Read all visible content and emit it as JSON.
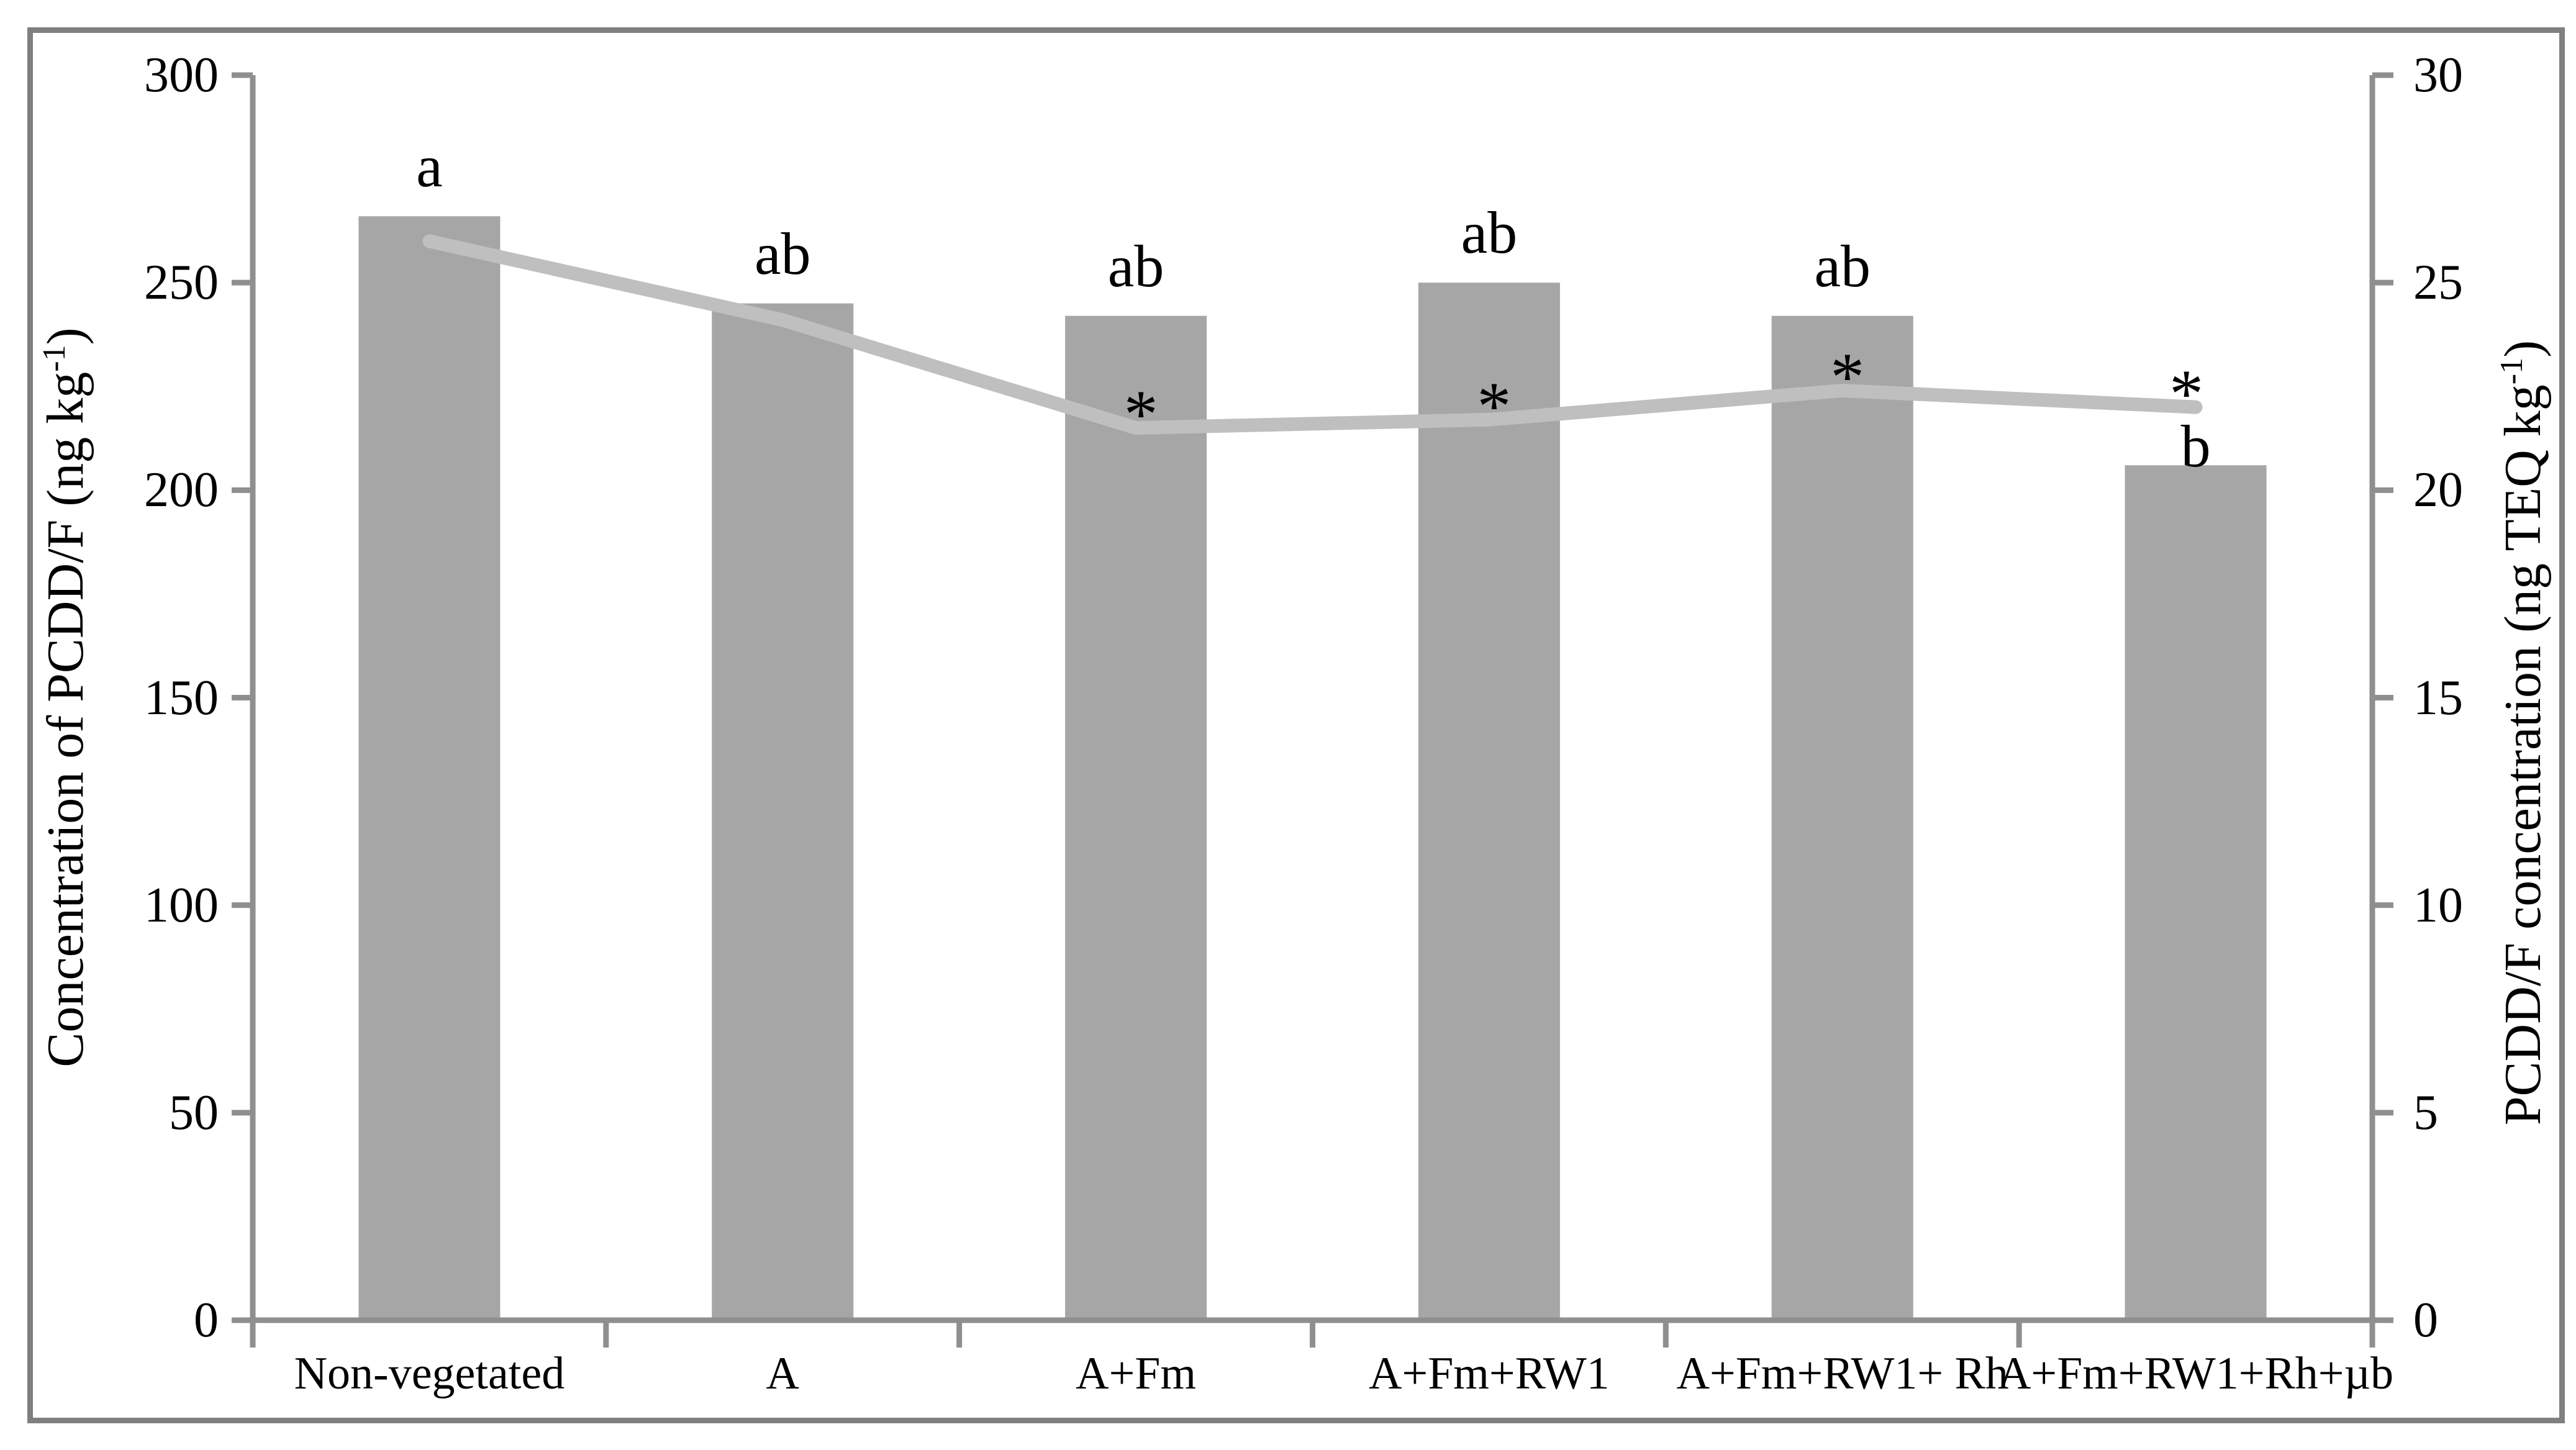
{
  "figure": {
    "kind": "dual-axis bar and line chart",
    "background": "#ffffff",
    "colors": {
      "bar": "#a6a6a6",
      "line": "#bfbfbf",
      "axis": "#8f8f8f",
      "frame": "#7f7f7f",
      "text": "#000000"
    }
  },
  "chart_data": {
    "type": "bar",
    "categories": [
      "Non-vegetated",
      "A",
      "A+Fm",
      "A+Fm+RW1",
      "A+Fm+RW1+ Rh",
      "A+Fm+RW1+Rh+µb"
    ],
    "series": [
      {
        "name": "Concentration of PCDD/F (bars, left axis)",
        "type": "bar",
        "axis": "left",
        "values": [
          266,
          245,
          242,
          250,
          242,
          206
        ],
        "letters": [
          "a",
          "ab",
          "ab",
          "ab",
          "ab",
          "b"
        ]
      },
      {
        "name": "PCDD/F TEQ concentration (line, right axis)",
        "type": "line",
        "axis": "right",
        "values": [
          26.0,
          24.1,
          21.5,
          21.7,
          22.4,
          22.0
        ],
        "asterisks": [
          false,
          false,
          true,
          true,
          true,
          true
        ],
        "asterisk_symbol": "*"
      }
    ],
    "left_axis": {
      "label_pre": "Concentration of PCDD/F (ng kg",
      "label_sup": "-1",
      "label_post": ")",
      "min": 0,
      "max": 300,
      "step": 50,
      "tick_labels": [
        "0",
        "50",
        "100",
        "150",
        "200",
        "250",
        "300"
      ]
    },
    "right_axis": {
      "label_pre": "PCDD/F concentration (ng TEQ kg",
      "label_sup": "-1",
      "label_post": ")",
      "min": 0,
      "max": 30,
      "step": 5,
      "tick_labels": [
        "0",
        "5",
        "10",
        "15",
        "20",
        "25",
        "30"
      ]
    },
    "x_axis": {
      "tick_marks_at_category_boundaries": true
    },
    "grid": "off",
    "legend": "none"
  }
}
